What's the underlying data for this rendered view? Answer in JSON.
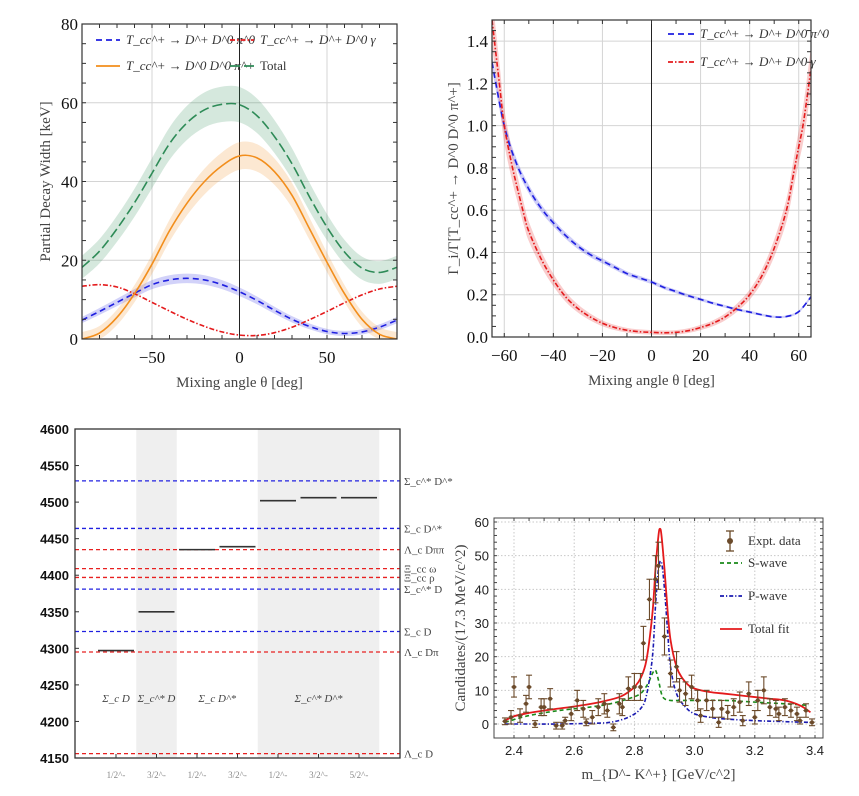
{
  "chart_data": [
    {
      "id": "width_vs_angle",
      "type": "line",
      "title": "",
      "xlabel": "Mixing angle θ [deg]",
      "ylabel": "Partial Decay Width [keV]",
      "xlim": [
        -90,
        90
      ],
      "ylim": [
        0,
        80
      ],
      "xticks": [
        -50,
        0,
        50
      ],
      "yticks": [
        0,
        20,
        40,
        60,
        80
      ],
      "grid": true,
      "legend_position": "top",
      "x": [
        -90,
        -80,
        -70,
        -60,
        -50,
        -40,
        -30,
        -20,
        -10,
        0,
        10,
        20,
        30,
        40,
        50,
        60,
        70,
        80,
        90
      ],
      "series": [
        {
          "name": "T_cc^+ → D^+ D^0 π^0",
          "color": "#1f1fe0",
          "style": "dashed",
          "values": [
            4.8,
            7.0,
            9.3,
            11.6,
            13.8,
            15.0,
            15.4,
            15.0,
            13.8,
            12.0,
            9.8,
            7.3,
            5.0,
            3.2,
            1.9,
            1.4,
            1.8,
            3.0,
            4.8
          ],
          "band": 1.2
        },
        {
          "name": "T_cc^+ → D^+ D^0 γ",
          "color": "#e41a1c",
          "style": "dashdot",
          "values": [
            13.4,
            13.8,
            13.2,
            11.5,
            9.3,
            7.1,
            5.0,
            3.2,
            1.8,
            1.0,
            0.9,
            1.6,
            3.0,
            4.9,
            7.0,
            9.2,
            11.2,
            12.7,
            13.4
          ],
          "band": 0.0
        },
        {
          "name": "T_cc^+ → D^0 D^0 π^+",
          "color": "#f28e1c",
          "style": "solid",
          "values": [
            0.0,
            1.5,
            5.5,
            11.5,
            19.0,
            27.5,
            34.5,
            40.0,
            44.0,
            46.5,
            46.0,
            42.5,
            36.5,
            28.0,
            19.5,
            11.5,
            5.0,
            1.2,
            0.0
          ],
          "band": 3.5
        },
        {
          "name": "Total",
          "color": "#2e8b57",
          "style": "longdash",
          "values": [
            18.2,
            22.3,
            28.0,
            34.6,
            42.1,
            49.6,
            54.9,
            58.2,
            59.6,
            59.5,
            56.7,
            51.4,
            44.5,
            36.1,
            28.4,
            22.1,
            18.0,
            16.9,
            18.2
          ],
          "band": 4.5
        }
      ]
    },
    {
      "id": "ratio_vs_angle",
      "type": "line",
      "title": "",
      "xlabel": "Mixing angle θ [deg]",
      "ylabel": "Γ_i/Γ[T_cc^+ → D^0 D^0 π^+]",
      "xlim": [
        -65,
        65
      ],
      "ylim": [
        0,
        1.5
      ],
      "xticks": [
        -60,
        -40,
        -20,
        0,
        20,
        40,
        60
      ],
      "yticks": [
        0.0,
        0.2,
        0.4,
        0.6,
        0.8,
        1.0,
        1.2,
        1.4
      ],
      "grid": true,
      "legend_position": "top-right",
      "series": [
        {
          "name": "T_cc^+ → D^+ D^0 π^0",
          "color": "#1f1fe0",
          "style": "dashed",
          "x": [
            -65,
            -60,
            -55,
            -50,
            -45,
            -40,
            -35,
            -30,
            -25,
            -20,
            -15,
            -10,
            -5,
            0,
            5,
            10,
            15,
            20,
            25,
            30,
            35,
            40,
            45,
            50,
            55,
            60,
            65
          ],
          "values": [
            1.3,
            1.0,
            0.82,
            0.7,
            0.61,
            0.54,
            0.48,
            0.43,
            0.39,
            0.36,
            0.33,
            0.3,
            0.28,
            0.26,
            0.235,
            0.215,
            0.195,
            0.178,
            0.16,
            0.145,
            0.13,
            0.118,
            0.105,
            0.095,
            0.097,
            0.12,
            0.19
          ],
          "band": 0.01
        },
        {
          "name": "T_cc^+ → D^+ D^0 γ",
          "color": "#e41a1c",
          "style": "dashdot",
          "x": [
            -65,
            -62,
            -60,
            -57,
            -55,
            -52,
            -50,
            -45,
            -40,
            -35,
            -30,
            -25,
            -20,
            -15,
            -10,
            -5,
            0,
            5,
            10,
            15,
            20,
            25,
            30,
            35,
            40,
            45,
            50,
            55,
            58,
            60,
            62,
            65
          ],
          "values": [
            1.5,
            1.2,
            1.0,
            0.82,
            0.72,
            0.58,
            0.5,
            0.37,
            0.27,
            0.19,
            0.135,
            0.095,
            0.065,
            0.045,
            0.032,
            0.025,
            0.022,
            0.02,
            0.022,
            0.03,
            0.045,
            0.065,
            0.095,
            0.14,
            0.2,
            0.29,
            0.42,
            0.6,
            0.78,
            0.9,
            1.02,
            1.27
          ],
          "band": 0.03
        }
      ]
    },
    {
      "id": "pentaquark_levels",
      "type": "bar",
      "title": "",
      "xlabel": "",
      "ylabel": "",
      "ylim": [
        4150,
        4600
      ],
      "yticks": [
        4150,
        4200,
        4250,
        4300,
        4350,
        4400,
        4450,
        4500,
        4550,
        4600
      ],
      "grid": false,
      "categories": [
        "1/2^-",
        "3/2^-",
        "1/2^-",
        "3/2^-",
        "1/2^-",
        "3/2^-",
        "5/2^-"
      ],
      "groups": [
        {
          "label": "Σ_c D",
          "categories": [
            0
          ],
          "shaded": false
        },
        {
          "label": "Σ_c^* D",
          "categories": [
            1
          ],
          "shaded": true
        },
        {
          "label": "Σ_c D^*",
          "categories": [
            2,
            3
          ],
          "shaded": false
        },
        {
          "label": "Σ_c^* D^*",
          "categories": [
            4,
            5,
            6
          ],
          "shaded": true
        }
      ],
      "levels": [
        4297,
        4350,
        4435,
        4439,
        4502,
        4506,
        4506
      ],
      "thresholds": [
        {
          "label": "Σ_c^* D^*",
          "value": 4529,
          "color": "#2020e0"
        },
        {
          "label": "Σ_c D^*",
          "value": 4464,
          "color": "#2020e0"
        },
        {
          "label": "Λ_c Dππ",
          "value": 4435,
          "color": "#e82020"
        },
        {
          "label": "Ξ_cc ω",
          "value": 4409,
          "color": "#e82020"
        },
        {
          "label": "Ξ_cc ρ",
          "value": 4397,
          "color": "#e82020"
        },
        {
          "label": "Σ_c^* D",
          "value": 4381,
          "color": "#2020e0"
        },
        {
          "label": "Σ_c D",
          "value": 4323,
          "color": "#2020e0"
        },
        {
          "label": "Λ_c Dπ",
          "value": 4295,
          "color": "#e82020"
        },
        {
          "label": "Λ_c D",
          "value": 4156,
          "color": "#e82020"
        }
      ]
    },
    {
      "id": "dk_mass_spectrum",
      "type": "scatter",
      "title": "",
      "xlabel": "m_{D^- K^+} [GeV/c^2]",
      "ylabel": "Candidates/(17.3 MeV/c^2)",
      "xlim": [
        2.34,
        3.41
      ],
      "ylim": [
        -4,
        61
      ],
      "xticks": [
        2.4,
        2.6,
        2.8,
        3.0,
        3.2,
        3.4
      ],
      "yticks": [
        0,
        10,
        20,
        30,
        40,
        50,
        60
      ],
      "grid": true,
      "legend_position": "top-right",
      "data_points": {
        "name": "Expt. data",
        "color": "#6b4a2a",
        "x": [
          2.37,
          2.39,
          2.4,
          2.42,
          2.44,
          2.45,
          2.47,
          2.49,
          2.5,
          2.52,
          2.54,
          2.56,
          2.57,
          2.59,
          2.61,
          2.63,
          2.64,
          2.66,
          2.68,
          2.7,
          2.71,
          2.73,
          2.75,
          2.76,
          2.78,
          2.8,
          2.82,
          2.83,
          2.85,
          2.87,
          2.88,
          2.9,
          2.92,
          2.94,
          2.95,
          2.97,
          2.99,
          3.01,
          3.02,
          3.04,
          3.06,
          3.08,
          3.09,
          3.11,
          3.13,
          3.15,
          3.16,
          3.18,
          3.2,
          3.21,
          3.23,
          3.25,
          3.27,
          3.28,
          3.3,
          3.32,
          3.34,
          3.35,
          3.37,
          3.39
        ],
        "y": [
          0.8,
          2.0,
          11.0,
          2.5,
          6.0,
          11.0,
          0.0,
          5.0,
          5.0,
          7.5,
          -0.5,
          -0.5,
          1.0,
          3.0,
          7.0,
          4.5,
          0.5,
          2.0,
          5.0,
          6.0,
          4.0,
          -1.0,
          6.0,
          5.0,
          10.5,
          11.0,
          11.0,
          24.0,
          37.0,
          43.0,
          47.0,
          26.0,
          15.0,
          17.0,
          10.0,
          9.0,
          11.0,
          7.0,
          2.5,
          7.0,
          4.5,
          0.5,
          4.5,
          3.5,
          5.0,
          6.5,
          1.0,
          9.0,
          2.0,
          7.0,
          10.0,
          5.0,
          4.5,
          3.0,
          5.0,
          4.0,
          3.0,
          1.0,
          4.0,
          0.5
        ],
        "yerr": [
          1,
          2,
          3,
          2,
          2.5,
          3.5,
          1,
          2.5,
          2.5,
          3,
          1,
          1,
          1,
          2,
          3,
          2.5,
          1,
          2,
          2.5,
          3,
          2,
          1,
          3,
          2.5,
          3.5,
          4,
          4,
          5,
          6,
          7,
          7,
          5.5,
          4,
          4.5,
          3.5,
          3.5,
          3.5,
          3,
          2,
          3,
          2.5,
          1.5,
          2.5,
          2,
          2.5,
          3,
          1.5,
          3.5,
          2,
          3,
          4,
          2.5,
          2.5,
          2,
          2.5,
          2,
          2,
          1,
          2,
          1
        ],
        "xerr": 0.0087
      },
      "series": [
        {
          "name": "S-wave",
          "color": "#1a8a1a",
          "style": "dashed",
          "x": [
            2.37,
            2.45,
            2.55,
            2.65,
            2.72,
            2.78,
            2.82,
            2.845,
            2.86,
            2.87,
            2.88,
            2.89,
            2.9,
            2.92,
            2.95,
            3.0,
            3.1,
            3.2,
            3.3,
            3.38
          ],
          "values": [
            0.5,
            2.5,
            4.0,
            5.0,
            6.0,
            7.5,
            9.0,
            12.0,
            15.0,
            16.0,
            13.0,
            9.0,
            7.5,
            7.0,
            7.0,
            7.0,
            7.0,
            6.5,
            6.0,
            5.5
          ]
        },
        {
          "name": "P-wave",
          "color": "#1a1ab0",
          "style": "dashdot",
          "x": [
            2.37,
            2.45,
            2.55,
            2.65,
            2.72,
            2.78,
            2.82,
            2.84,
            2.86,
            2.87,
            2.88,
            2.89,
            2.9,
            2.91,
            2.92,
            2.94,
            2.97,
            3.0,
            3.05,
            3.1,
            3.2,
            3.3,
            3.38
          ],
          "values": [
            0.0,
            0.0,
            0.0,
            0.2,
            0.5,
            2.0,
            4.5,
            8.5,
            20.0,
            35.0,
            46.0,
            48.0,
            40.0,
            28.0,
            17.0,
            9.0,
            5.0,
            3.0,
            2.0,
            1.5,
            1.0,
            0.7,
            0.5
          ]
        },
        {
          "name": "Total fit",
          "color": "#e41a1c",
          "style": "solid",
          "x": [
            2.37,
            2.4,
            2.45,
            2.5,
            2.55,
            2.6,
            2.65,
            2.7,
            2.75,
            2.78,
            2.8,
            2.82,
            2.84,
            2.86,
            2.87,
            2.88,
            2.885,
            2.89,
            2.9,
            2.91,
            2.92,
            2.94,
            2.96,
            2.98,
            3.0,
            3.05,
            3.1,
            3.15,
            3.2,
            3.25,
            3.3,
            3.35,
            3.385
          ],
          "values": [
            1.0,
            2.3,
            3.3,
            4.0,
            4.6,
            5.2,
            5.9,
            6.8,
            8.0,
            9.5,
            11.0,
            13.5,
            19.0,
            33.0,
            46.0,
            56.0,
            58.0,
            56.0,
            46.0,
            34.0,
            25.0,
            17.0,
            13.5,
            11.5,
            10.5,
            9.5,
            9.0,
            8.5,
            8.0,
            7.5,
            7.0,
            5.5,
            3.5
          ]
        }
      ]
    }
  ]
}
